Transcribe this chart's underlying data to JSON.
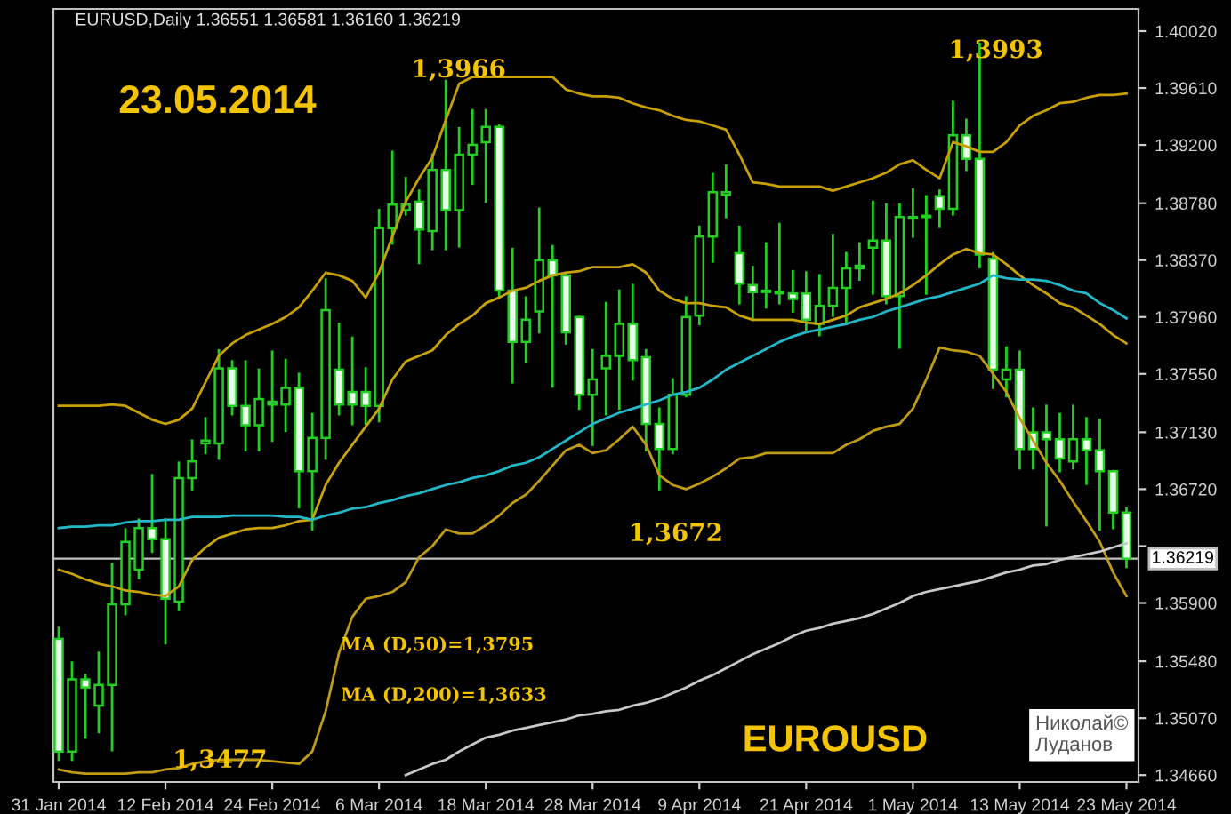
{
  "chart_data": {
    "type": "candlestick",
    "title": "EURUSD,Daily 1.36551 1.36581 1.36160 1.36219",
    "categories": [
      "31 Jan 2014",
      null,
      null,
      null,
      null,
      null,
      null,
      null,
      "12 Feb 2014",
      null,
      null,
      null,
      null,
      null,
      null,
      null,
      "24 Feb 2014",
      null,
      null,
      null,
      null,
      null,
      null,
      null,
      "6 Mar 2014",
      null,
      null,
      null,
      null,
      null,
      null,
      null,
      "18 Mar 2014",
      null,
      null,
      null,
      null,
      null,
      null,
      null,
      "28 Mar 2014",
      null,
      null,
      null,
      null,
      null,
      null,
      null,
      "9 Apr 2014",
      null,
      null,
      null,
      null,
      null,
      null,
      null,
      "21 Apr 2014",
      null,
      null,
      null,
      null,
      null,
      null,
      null,
      "1 May 2014",
      null,
      null,
      null,
      null,
      null,
      null,
      null,
      "13 May 2014",
      null,
      null,
      null,
      null,
      null,
      null,
      null,
      "23 May 2014"
    ],
    "ohlc": [
      [
        1.3564,
        1.3572,
        1.3477,
        1.3483
      ],
      [
        1.3483,
        1.3547,
        1.3477,
        1.3535
      ],
      [
        1.3535,
        1.3538,
        1.3493,
        1.3529
      ],
      [
        1.3516,
        1.3554,
        1.3497,
        1.3531
      ],
      [
        1.3531,
        1.3618,
        1.3484,
        1.3589
      ],
      [
        1.3589,
        1.3643,
        1.3582,
        1.3634
      ],
      [
        1.3614,
        1.365,
        1.3608,
        1.3644
      ],
      [
        1.3644,
        1.3682,
        1.3627,
        1.3636
      ],
      [
        1.3636,
        1.365,
        1.3561,
        1.3593
      ],
      [
        1.3591,
        1.3691,
        1.3585,
        1.368
      ],
      [
        1.368,
        1.3707,
        1.3672,
        1.3692
      ],
      [
        1.3705,
        1.3723,
        1.3698,
        1.3707
      ],
      [
        1.3705,
        1.3772,
        1.3694,
        1.3759
      ],
      [
        1.3759,
        1.3764,
        1.3726,
        1.3732
      ],
      [
        1.3732,
        1.3764,
        1.37,
        1.3718
      ],
      [
        1.3718,
        1.3758,
        1.37,
        1.3737
      ],
      [
        1.3733,
        1.3771,
        1.3707,
        1.3735
      ],
      [
        1.3733,
        1.3765,
        1.3714,
        1.3745
      ],
      [
        1.3745,
        1.3755,
        1.3659,
        1.3685
      ],
      [
        1.3685,
        1.3726,
        1.3643,
        1.3709
      ],
      [
        1.3709,
        1.3823,
        1.3694,
        1.3801
      ],
      [
        1.3758,
        1.3791,
        1.3726,
        1.3733
      ],
      [
        1.3742,
        1.3781,
        1.3719,
        1.3733
      ],
      [
        1.3742,
        1.3759,
        1.3719,
        1.3732
      ],
      [
        1.3732,
        1.3873,
        1.3721,
        1.386
      ],
      [
        1.386,
        1.3915,
        1.3849,
        1.3877
      ],
      [
        1.3873,
        1.3896,
        1.387,
        1.3877
      ],
      [
        1.3879,
        1.3887,
        1.3835,
        1.3859
      ],
      [
        1.3858,
        1.3913,
        1.3845,
        1.3902
      ],
      [
        1.3902,
        1.3966,
        1.3845,
        1.3873
      ],
      [
        1.3873,
        1.3932,
        1.3847,
        1.3913
      ],
      [
        1.3913,
        1.3945,
        1.3892,
        1.392
      ],
      [
        1.3922,
        1.3945,
        1.3879,
        1.3933
      ],
      [
        1.3933,
        1.3934,
        1.381,
        1.3815
      ],
      [
        1.3815,
        1.3845,
        1.3749,
        1.3778
      ],
      [
        1.3778,
        1.381,
        1.3764,
        1.3794
      ],
      [
        1.38,
        1.3874,
        1.3785,
        1.3837
      ],
      [
        1.3837,
        1.3847,
        1.3746,
        1.3826
      ],
      [
        1.3826,
        1.3828,
        1.3777,
        1.3785
      ],
      [
        1.3796,
        1.3796,
        1.373,
        1.374
      ],
      [
        1.374,
        1.3772,
        1.3704,
        1.3751
      ],
      [
        1.3759,
        1.3806,
        1.3726,
        1.3768
      ],
      [
        1.3768,
        1.3815,
        1.373,
        1.3791
      ],
      [
        1.3791,
        1.3819,
        1.3751,
        1.3765
      ],
      [
        1.3767,
        1.3772,
        1.37,
        1.3719
      ],
      [
        1.3719,
        1.373,
        1.3672,
        1.3701
      ],
      [
        1.3701,
        1.3751,
        1.3698,
        1.374
      ],
      [
        1.374,
        1.381,
        1.3739,
        1.3796
      ],
      [
        1.3797,
        1.3861,
        1.3791,
        1.3854
      ],
      [
        1.3854,
        1.3899,
        1.3836,
        1.3886
      ],
      [
        1.3884,
        1.3905,
        1.3868,
        1.3886
      ],
      [
        1.3842,
        1.3861,
        1.3806,
        1.382
      ],
      [
        1.3819,
        1.3832,
        1.3794,
        1.3814
      ],
      [
        1.3814,
        1.3849,
        1.3803,
        1.3815
      ],
      [
        1.3813,
        1.3863,
        1.3806,
        1.3814
      ],
      [
        1.3813,
        1.3829,
        1.38,
        1.3809
      ],
      [
        1.3813,
        1.3828,
        1.3787,
        1.3794
      ],
      [
        1.3791,
        1.3826,
        1.3783,
        1.3804
      ],
      [
        1.3804,
        1.3855,
        1.3797,
        1.3817
      ],
      [
        1.3817,
        1.3842,
        1.3791,
        1.3831
      ],
      [
        1.3831,
        1.3849,
        1.3823,
        1.3833
      ],
      [
        1.3846,
        1.3879,
        1.3813,
        1.3851
      ],
      [
        1.3851,
        1.3877,
        1.3806,
        1.3811
      ],
      [
        1.3811,
        1.3877,
        1.3774,
        1.3868
      ],
      [
        1.3867,
        1.3888,
        1.3854,
        1.3868
      ],
      [
        1.3868,
        1.3883,
        1.3813,
        1.3869
      ],
      [
        1.3883,
        1.3887,
        1.3861,
        1.3874
      ],
      [
        1.3874,
        1.3951,
        1.387,
        1.3927
      ],
      [
        1.3927,
        1.3938,
        1.3902,
        1.391
      ],
      [
        1.391,
        1.3993,
        1.3832,
        1.3841
      ],
      [
        1.3838,
        1.3842,
        1.3745,
        1.3758
      ],
      [
        1.3751,
        1.3774,
        1.3739,
        1.3758
      ],
      [
        1.3758,
        1.3771,
        1.3687,
        1.3701
      ],
      [
        1.3713,
        1.373,
        1.3687,
        1.3701
      ],
      [
        1.3713,
        1.3732,
        1.3646,
        1.3708
      ],
      [
        1.3708,
        1.3726,
        1.3685,
        1.3694
      ],
      [
        1.3692,
        1.3732,
        1.3687,
        1.3708
      ],
      [
        1.3708,
        1.3723,
        1.3676,
        1.37
      ],
      [
        1.37,
        1.3722,
        1.3643,
        1.3685
      ],
      [
        1.3685,
        1.3685,
        1.3644,
        1.36551
      ],
      [
        1.36551,
        1.36581,
        1.3616,
        1.36219
      ]
    ],
    "series": [
      {
        "type": "line",
        "color": "#c8a000",
        "values": [
          1.3732,
          1.3732,
          1.3732,
          1.3732,
          1.3733,
          1.3732,
          1.3727,
          1.3722,
          1.3719,
          1.3722,
          1.373,
          1.3749,
          1.3768,
          1.3777,
          1.3783,
          1.3787,
          1.3791,
          1.3796,
          1.3803,
          1.3815,
          1.3828,
          1.3826,
          1.3822,
          1.381,
          1.3828,
          1.3854,
          1.3879,
          1.3896,
          1.3911,
          1.3938,
          1.3964,
          1.3969,
          1.3969,
          1.3969,
          1.3969,
          1.3969,
          1.3969,
          1.3969,
          1.396,
          1.3957,
          1.3955,
          1.3955,
          1.3954,
          1.395,
          1.3947,
          1.3945,
          1.3941,
          1.3938,
          1.3937,
          1.3934,
          1.3931,
          1.3913,
          1.3893,
          1.3892,
          1.389,
          1.389,
          1.389,
          1.389,
          1.3887,
          1.389,
          1.3893,
          1.3896,
          1.39,
          1.3906,
          1.3909,
          1.3902,
          1.3896,
          1.3922,
          1.3919,
          1.3915,
          1.3915,
          1.3922,
          1.3934,
          1.3941,
          1.3945,
          1.395,
          1.3951,
          1.3954,
          1.3956,
          1.3956,
          1.3957
        ]
      },
      {
        "type": "line",
        "color": "#c8a40a",
        "values": [
          1.3614,
          1.3611,
          1.3607,
          1.3604,
          1.3602,
          1.3599,
          1.3598,
          1.3596,
          1.3595,
          1.3602,
          1.3621,
          1.363,
          1.3637,
          1.364,
          1.3643,
          1.3644,
          1.3644,
          1.3646,
          1.3649,
          1.365,
          1.3675,
          1.3691,
          1.3704,
          1.3717,
          1.373,
          1.3751,
          1.3764,
          1.3768,
          1.3772,
          1.3783,
          1.3791,
          1.3797,
          1.3806,
          1.381,
          1.3815,
          1.3817,
          1.3822,
          1.3826,
          1.3828,
          1.3829,
          1.3832,
          1.3832,
          1.3832,
          1.3834,
          1.3828,
          1.3815,
          1.3809,
          1.3806,
          1.3806,
          1.3804,
          1.3803,
          1.3797,
          1.3794,
          1.3794,
          1.3794,
          1.3794,
          1.3792,
          1.3791,
          1.3794,
          1.3797,
          1.3803,
          1.3806,
          1.3809,
          1.3813,
          1.3819,
          1.3826,
          1.3834,
          1.3841,
          1.3845,
          1.3842,
          1.3841,
          1.3834,
          1.3826,
          1.3819,
          1.3813,
          1.3806,
          1.3803,
          1.3797,
          1.3791,
          1.3783,
          1.3777
        ]
      },
      {
        "type": "line",
        "color": "#c09c14",
        "values": [
          1.347,
          1.3468,
          1.3467,
          1.3467,
          1.3467,
          1.3467,
          1.3468,
          1.3468,
          1.347,
          1.3471,
          1.3474,
          1.3476,
          1.3477,
          1.3477,
          1.3477,
          1.3477,
          1.3476,
          1.3475,
          1.3474,
          1.3483,
          1.3512,
          1.3554,
          1.358,
          1.3593,
          1.3595,
          1.3598,
          1.3605,
          1.3623,
          1.3631,
          1.3643,
          1.364,
          1.364,
          1.3646,
          1.3653,
          1.3662,
          1.3668,
          1.3678,
          1.3689,
          1.37,
          1.3704,
          1.3698,
          1.37,
          1.3708,
          1.3717,
          1.3704,
          1.3682,
          1.3675,
          1.3672,
          1.3676,
          1.3681,
          1.3687,
          1.3694,
          1.3695,
          1.3698,
          1.3698,
          1.3698,
          1.3698,
          1.3698,
          1.3698,
          1.3704,
          1.3708,
          1.3714,
          1.3717,
          1.3719,
          1.373,
          1.3751,
          1.3774,
          1.3772,
          1.3771,
          1.3768,
          1.3755,
          1.3742,
          1.3723,
          1.3707,
          1.3691,
          1.3678,
          1.3663,
          1.3649,
          1.3634,
          1.3612,
          1.3595
        ]
      },
      {
        "type": "line",
        "color": "#22b8c8",
        "values": [
          1.3644,
          1.3645,
          1.3645,
          1.3646,
          1.3646,
          1.3648,
          1.3649,
          1.3649,
          1.365,
          1.365,
          1.3652,
          1.3652,
          1.3652,
          1.3653,
          1.3653,
          1.3653,
          1.3653,
          1.3652,
          1.3652,
          1.365,
          1.3653,
          1.3655,
          1.3658,
          1.3659,
          1.3662,
          1.3664,
          1.3667,
          1.3669,
          1.3672,
          1.3675,
          1.3677,
          1.368,
          1.3682,
          1.3685,
          1.3689,
          1.3691,
          1.3695,
          1.3701,
          1.3707,
          1.3713,
          1.3719,
          1.3723,
          1.3727,
          1.373,
          1.3733,
          1.3736,
          1.374,
          1.3742,
          1.3745,
          1.3751,
          1.3758,
          1.3763,
          1.3768,
          1.3773,
          1.3778,
          1.3782,
          1.3785,
          1.3787,
          1.3789,
          1.3791,
          1.3794,
          1.3796,
          1.38,
          1.3803,
          1.3806,
          1.3809,
          1.3811,
          1.3814,
          1.3817,
          1.382,
          1.3826,
          1.3824,
          1.3823,
          1.3823,
          1.3822,
          1.3819,
          1.3815,
          1.3813,
          1.3806,
          1.3801,
          1.3795
        ]
      },
      {
        "type": "line",
        "color": "#c8c8c8",
        "values": [
          null,
          null,
          null,
          null,
          null,
          null,
          null,
          null,
          null,
          null,
          null,
          null,
          null,
          null,
          null,
          null,
          null,
          null,
          null,
          null,
          null,
          null,
          null,
          null,
          null,
          null,
          1.3466,
          1.347,
          1.3474,
          1.3477,
          1.3483,
          1.3488,
          1.3493,
          1.3495,
          1.3498,
          1.35,
          1.3502,
          1.3504,
          1.3506,
          1.3509,
          1.351,
          1.3512,
          1.3513,
          1.3516,
          1.3518,
          1.3521,
          1.3525,
          1.3529,
          1.3534,
          1.3538,
          1.3543,
          1.3548,
          1.3553,
          1.3557,
          1.3561,
          1.3566,
          1.357,
          1.3572,
          1.3575,
          1.3577,
          1.3579,
          1.3582,
          1.3586,
          1.359,
          1.3595,
          1.3598,
          1.36,
          1.3602,
          1.3604,
          1.3606,
          1.3609,
          1.3612,
          1.3614,
          1.3617,
          1.3618,
          1.3621,
          1.3623,
          1.3625,
          1.3627,
          1.363,
          1.3633
        ]
      }
    ],
    "ylim": [
      1.3461,
      1.4018
    ],
    "yticks": [
      {
        "value": 1.4002,
        "label": "1.40020"
      },
      {
        "value": 1.3961,
        "label": "1.39610"
      },
      {
        "value": 1.392,
        "label": "1.39200"
      },
      {
        "value": 1.3878,
        "label": "1.38780"
      },
      {
        "value": 1.3837,
        "label": "1.38370"
      },
      {
        "value": 1.3796,
        "label": "1.37960"
      },
      {
        "value": 1.3755,
        "label": "1.37550"
      },
      {
        "value": 1.3713,
        "label": "1.37130"
      },
      {
        "value": 1.3672,
        "label": "1.36720"
      },
      {
        "value": 1.3631,
        "label": null
      },
      {
        "value": 1.359,
        "label": "1.35900"
      },
      {
        "value": 1.3548,
        "label": "1.35480"
      },
      {
        "value": 1.3507,
        "label": "1.35070"
      },
      {
        "value": 1.3466,
        "label": "1.34660"
      }
    ],
    "ref_lines": [
      {
        "axis": "y",
        "value": 1.36219,
        "label": "1.36219",
        "color": "#c0c0c0"
      }
    ],
    "annotations": [
      "1,3966",
      "1,3993",
      "1,3672",
      "1,3477",
      "23.05.2014",
      "MA (D,50)=1,3795",
      "MA (D,200)=1,3633",
      "EUROUSD",
      "Николай©\nЛуданов"
    ],
    "grid": false,
    "legend": false
  }
}
